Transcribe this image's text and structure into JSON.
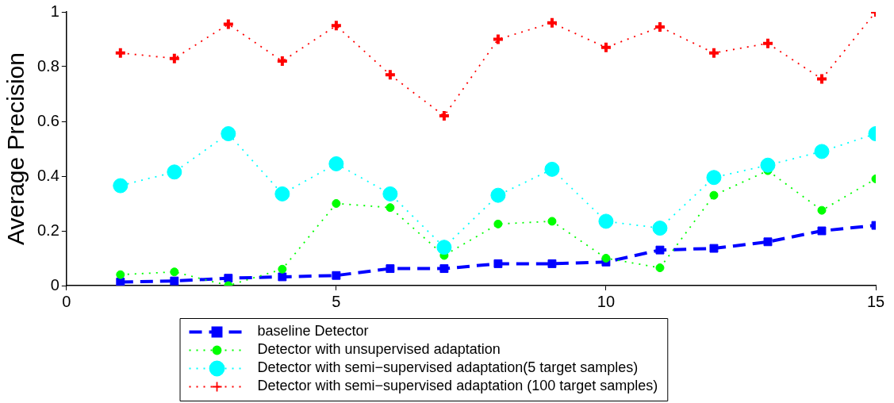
{
  "chart_data": {
    "type": "line",
    "ylabel": "Average Precision",
    "x": [
      1,
      2,
      3,
      4,
      5,
      6,
      7,
      8,
      9,
      10,
      11,
      12,
      13,
      14,
      15
    ],
    "xlim": [
      0,
      15
    ],
    "xticks": [
      0,
      5,
      10,
      15
    ],
    "ylim": [
      0,
      1
    ],
    "yticks": [
      0,
      0.2,
      0.4,
      0.6,
      0.8,
      1
    ],
    "grid": false,
    "legend": "bottom",
    "series": [
      {
        "name": "baseline Detector",
        "color": "#0000ff",
        "marker": "square",
        "line_style": "dashed",
        "values": [
          0.013,
          0.017,
          0.027,
          0.032,
          0.037,
          0.062,
          0.062,
          0.08,
          0.08,
          0.086,
          0.13,
          0.136,
          0.16,
          0.2,
          0.22
        ]
      },
      {
        "name": "Detector with unsupervised adaptation",
        "color": "#00ff00",
        "marker": "circle",
        "line_style": "dotted",
        "values": [
          0.04,
          0.05,
          0,
          0.06,
          0.3,
          0.285,
          0.11,
          0.225,
          0.235,
          0.1,
          0.065,
          0.33,
          0.42,
          0.275,
          0.39
        ]
      },
      {
        "name": "Detector with semi−supervised adaptation(5 target samples)",
        "color": "#00ffff",
        "marker": "circle",
        "line_style": "dotted",
        "values": [
          0.365,
          0.415,
          0.555,
          0.335,
          0.445,
          0.335,
          0.14,
          0.33,
          0.425,
          0.235,
          0.21,
          0.395,
          0.44,
          0.49,
          0.555
        ]
      },
      {
        "name": "Detector with semi−supervised adaptation (100 target samples)",
        "color": "#ff0000",
        "marker": "cross",
        "line_style": "dotted",
        "values": [
          0.85,
          0.83,
          0.955,
          0.82,
          0.95,
          0.77,
          0.62,
          0.9,
          0.96,
          0.87,
          0.945,
          0.85,
          0.885,
          0.755,
          1.0
        ]
      }
    ]
  }
}
